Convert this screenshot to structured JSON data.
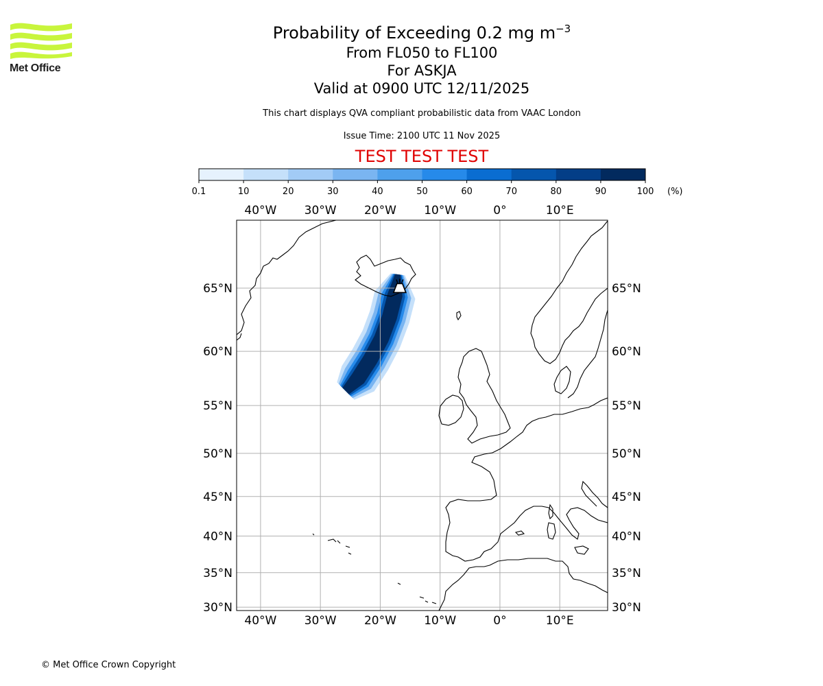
{
  "logo": {
    "text": "Met Office",
    "color": "#c8f53c"
  },
  "title": {
    "main": "Probability of Exceeding 0.2 mg m",
    "main_sup": "−3",
    "line2": "From FL050 to FL100",
    "line3": "For ASKJA",
    "line4": "Valid at 0900 UTC 12/11/2025",
    "note": "This chart displays QVA compliant probabilistic data from VAAC London",
    "issue": "Issue Time: 2100 UTC 11 Nov 2025",
    "test": "TEST TEST TEST"
  },
  "colorbar": {
    "ticks": [
      "0.1",
      "10",
      "20",
      "30",
      "40",
      "50",
      "60",
      "70",
      "80",
      "90",
      "100"
    ],
    "unit": "(%)",
    "colors": [
      "#e6f2fd",
      "#c5e0fa",
      "#a2cbf6",
      "#7ab5f1",
      "#4ea0ec",
      "#268aea",
      "#0a6dd1",
      "#0556ad",
      "#033e87",
      "#022a5e"
    ]
  },
  "map": {
    "lon_range": [
      -44,
      18
    ],
    "lat_range": [
      29.5,
      69.5
    ],
    "lon_labels": [
      {
        "v": -40,
        "t": "40°W"
      },
      {
        "v": -30,
        "t": "30°W"
      },
      {
        "v": -20,
        "t": "20°W"
      },
      {
        "v": -10,
        "t": "10°W"
      },
      {
        "v": 0,
        "t": "0°"
      },
      {
        "v": 10,
        "t": "10°E"
      }
    ],
    "lat_labels": [
      {
        "v": 65,
        "t": "65°N"
      },
      {
        "v": 60,
        "t": "60°N"
      },
      {
        "v": 55,
        "t": "55°N"
      },
      {
        "v": 50,
        "t": "50°N"
      },
      {
        "v": 45,
        "t": "45°N"
      },
      {
        "v": 40,
        "t": "40°N"
      },
      {
        "v": 35,
        "t": "35°N"
      },
      {
        "v": 30,
        "t": "30°N"
      }
    ],
    "volcano": {
      "name": "ASKJA",
      "lon": -16.75,
      "lat": 65.03
    }
  },
  "copyright": "© Met Office Crown Copyright"
}
